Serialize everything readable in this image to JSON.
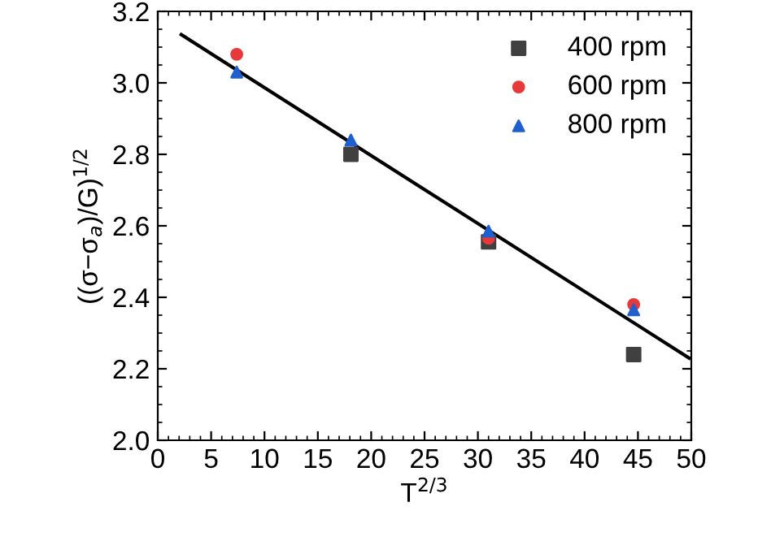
{
  "chart_data": {
    "type": "scatter",
    "xlabel": "T$^{2/3}$",
    "ylabel": "((σ−σ$_{a}$)/G)$^{1/2}$",
    "x": [
      7.4,
      18.1,
      31.0,
      44.6
    ],
    "series": [
      {
        "name": "400 rpm",
        "color": "#404040",
        "marker": "square",
        "values": [
          null,
          2.8,
          2.555,
          2.24
        ]
      },
      {
        "name": "600 rpm",
        "color": "#e8393a",
        "marker": "circle",
        "values": [
          3.08,
          null,
          2.565,
          2.38
        ]
      },
      {
        "name": "800 rpm",
        "color": "#1f5fd0",
        "marker": "triangle",
        "values": [
          3.03,
          2.84,
          2.585,
          2.365
        ]
      },
      {
        "type": "line",
        "color": "#000000",
        "x": [
          2.2,
          49.8
        ],
        "values": [
          3.135,
          2.23
        ]
      }
    ],
    "xlim": [
      0,
      50
    ],
    "ylim": [
      2.0,
      3.2
    ],
    "xticks": [
      0,
      5,
      10,
      15,
      20,
      25,
      30,
      35,
      40,
      45,
      50
    ],
    "yticks": [
      {
        "value": 2.0,
        "label": "2.0"
      },
      2.2,
      2.4,
      2.6,
      2.8,
      {
        "value": 3.0,
        "label": "3.0"
      },
      3.2
    ],
    "grid": false,
    "legend": "top right"
  }
}
